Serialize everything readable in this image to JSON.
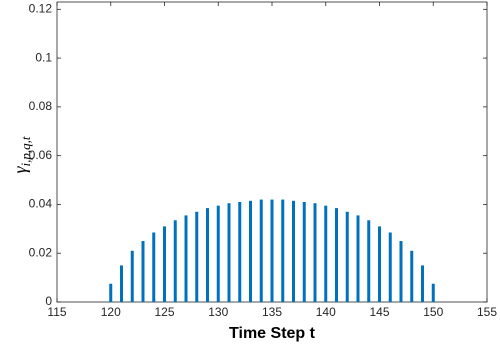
{
  "chart_data": {
    "type": "bar",
    "xlabel": "Time Step t",
    "ylabel": [
      "γ",
      "i,p,q,t"
    ],
    "x": [
      120,
      121,
      122,
      123,
      124,
      125,
      126,
      127,
      128,
      129,
      130,
      131,
      132,
      133,
      134,
      135,
      136,
      137,
      138,
      139,
      140,
      141,
      142,
      143,
      144,
      145,
      146,
      147,
      148,
      149,
      150
    ],
    "values": [
      0.0075,
      0.015,
      0.021,
      0.025,
      0.0285,
      0.031,
      0.0335,
      0.0355,
      0.037,
      0.0385,
      0.0395,
      0.0405,
      0.041,
      0.0415,
      0.042,
      0.042,
      0.042,
      0.0415,
      0.041,
      0.0405,
      0.0395,
      0.0385,
      0.037,
      0.0355,
      0.0335,
      0.031,
      0.0285,
      0.025,
      0.021,
      0.015,
      0.0075
    ],
    "color": "#0072bd",
    "xlim": [
      115,
      155
    ],
    "xticks": [
      115,
      120,
      125,
      130,
      135,
      140,
      145,
      150,
      155
    ],
    "ylim": [
      0,
      0.123
    ],
    "yticks": [
      0,
      0.02,
      0.04,
      0.06,
      0.08,
      0.1,
      0.12
    ],
    "grid": false
  }
}
